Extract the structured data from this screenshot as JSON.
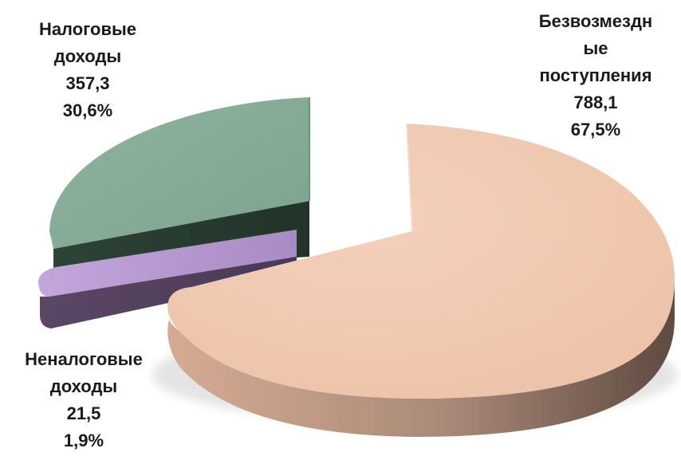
{
  "chart_data": {
    "type": "pie",
    "title": "",
    "slices": [
      {
        "name_lines": [
          "Безвозмездн",
          "ые",
          "поступления"
        ],
        "value": "788,1",
        "percent": "67,5%",
        "numeric_value": 788.1,
        "color": "#efc6ae"
      },
      {
        "name_lines": [
          "Налоговые",
          "доходы"
        ],
        "value": "357,3",
        "percent": "30,6%",
        "numeric_value": 357.3,
        "color": "#86ab97"
      },
      {
        "name_lines": [
          "Неналоговые",
          "доходы"
        ],
        "value": "21,5",
        "percent": "1,9%",
        "numeric_value": 21.5,
        "color": "#b89ed0"
      }
    ]
  }
}
